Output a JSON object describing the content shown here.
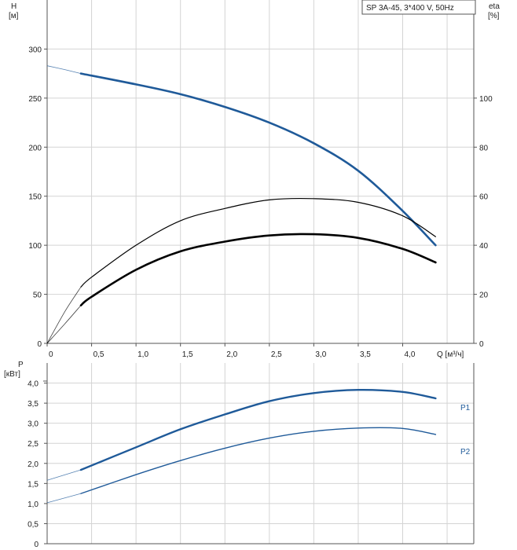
{
  "chart_data": [
    {
      "type": "line",
      "title": "SP 3A-45, 3*400 V, 50Hz",
      "ylabel": "H",
      "yunit": "[м]",
      "y2label": "eta",
      "y2unit": "[%]",
      "xlabel": "Q [м³/ч]",
      "xlim": [
        0,
        4.8
      ],
      "ylim": [
        0,
        350
      ],
      "y2lim": [
        0,
        140
      ],
      "xticks": [
        "0",
        "0,5",
        "1,0",
        "1,5",
        "2,0",
        "2,5",
        "3,0",
        "3,5",
        "4,0"
      ],
      "yticks": [
        "0",
        "50",
        "100",
        "150",
        "200",
        "250",
        "300"
      ],
      "y2ticks": [
        "0",
        "20",
        "40",
        "60",
        "80",
        "100"
      ],
      "grid": true,
      "series": [
        {
          "key": "H",
          "axis": "left",
          "color": "#1f5a99",
          "x": [
            0.38,
            1.0,
            1.5,
            2.0,
            2.5,
            3.0,
            3.5,
            4.0,
            4.37
          ],
          "y": [
            275,
            264,
            254,
            241,
            225,
            204,
            176,
            135,
            100
          ],
          "ext_x": [
            0.0,
            0.2,
            0.38
          ],
          "ext_y": [
            283,
            279,
            275
          ]
        },
        {
          "key": "eta_thin",
          "axis": "right",
          "color": "#000000",
          "x": [
            0.38,
            0.5,
            1.0,
            1.5,
            2.0,
            2.5,
            3.0,
            3.5,
            4.0,
            4.37
          ],
          "y": [
            23,
            27,
            40,
            50,
            55,
            58.5,
            59,
            57.5,
            52,
            43.5
          ],
          "ext_x": [
            0.0,
            0.2,
            0.38
          ],
          "ext_y": [
            0,
            13,
            23
          ]
        },
        {
          "key": "eta_thick",
          "axis": "right",
          "color": "#000000",
          "x": [
            0.38,
            0.5,
            1.0,
            1.5,
            2.0,
            2.5,
            3.0,
            3.5,
            4.0,
            4.37
          ],
          "y": [
            15.5,
            19,
            30,
            37.5,
            41.5,
            44,
            44.5,
            43,
            38.5,
            33
          ],
          "ext_x": [
            0.0,
            0.2,
            0.38
          ],
          "ext_y": [
            0,
            8,
            15.5
          ]
        }
      ]
    },
    {
      "type": "line",
      "ylabel": "P",
      "yunit": "[кВт]",
      "xlim": [
        0,
        4.8
      ],
      "ylim": [
        0,
        4.5
      ],
      "yticks": [
        "0",
        "0,5",
        "1,0",
        "1,5",
        "2,0",
        "2,5",
        "3,0",
        "3,5",
        "4,0"
      ],
      "grid": true,
      "series": [
        {
          "name": "P1",
          "color": "#1f5a99",
          "x": [
            0.38,
            1.0,
            1.5,
            2.0,
            2.5,
            3.0,
            3.5,
            4.0,
            4.37
          ],
          "y": [
            1.84,
            2.4,
            2.85,
            3.22,
            3.55,
            3.75,
            3.83,
            3.78,
            3.62
          ],
          "ext_x": [
            0.0,
            0.38
          ],
          "ext_y": [
            1.58,
            1.84
          ]
        },
        {
          "name": "P2",
          "color": "#1f5a99",
          "x": [
            0.38,
            1.0,
            1.5,
            2.0,
            2.5,
            3.0,
            3.5,
            4.0,
            4.37
          ],
          "y": [
            1.25,
            1.72,
            2.07,
            2.38,
            2.63,
            2.8,
            2.88,
            2.87,
            2.72
          ],
          "ext_x": [
            0.0,
            0.38
          ],
          "ext_y": [
            1.02,
            1.25
          ]
        }
      ]
    }
  ]
}
